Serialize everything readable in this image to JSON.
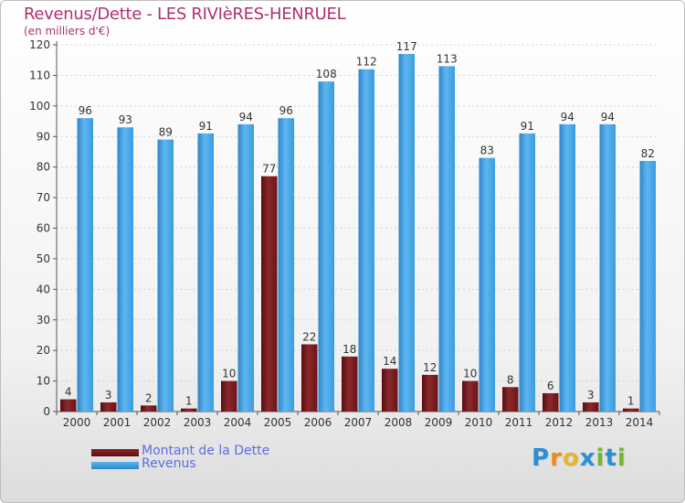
{
  "header": {
    "title": "Revenus/Dette - LES RIVIèRES-HENRUEL",
    "subtitle": "(en milliers d'€)"
  },
  "brand": {
    "text": "Proxiti",
    "letters": [
      "P",
      "r",
      "o",
      "x",
      "i",
      "t",
      "i"
    ],
    "letter_colors": [
      "#2a8fd6",
      "#f08a1c",
      "#e8b52a",
      "#2a8fd6",
      "#73b72e",
      "#2a8fd6",
      "#73b72e"
    ]
  },
  "legend": {
    "items": [
      "Montant de la Dette",
      "Revenus"
    ]
  },
  "chart_data": {
    "type": "bar",
    "title": "Revenus/Dette - LES RIVIèRES-HENRUEL",
    "subtitle": "(en milliers d'€)",
    "categories": [
      "2000",
      "2001",
      "2002",
      "2003",
      "2004",
      "2005",
      "2006",
      "2007",
      "2008",
      "2009",
      "2010",
      "2011",
      "2012",
      "2013",
      "2014"
    ],
    "series": [
      {
        "name": "Montant de la Dette",
        "color": "#6b0f12",
        "values": [
          4,
          3,
          2,
          1,
          10,
          77,
          22,
          18,
          14,
          12,
          10,
          8,
          6,
          3,
          1
        ]
      },
      {
        "name": "Revenus",
        "color": "#3fa1e6",
        "values": [
          96,
          93,
          89,
          91,
          94,
          96,
          108,
          112,
          117,
          113,
          83,
          91,
          94,
          94,
          82
        ]
      }
    ],
    "ylim": [
      0,
      120
    ],
    "yticks": [
      0,
      10,
      20,
      30,
      40,
      50,
      60,
      70,
      80,
      90,
      100,
      110,
      120
    ],
    "grid": true,
    "legend_position": "bottom-left"
  }
}
